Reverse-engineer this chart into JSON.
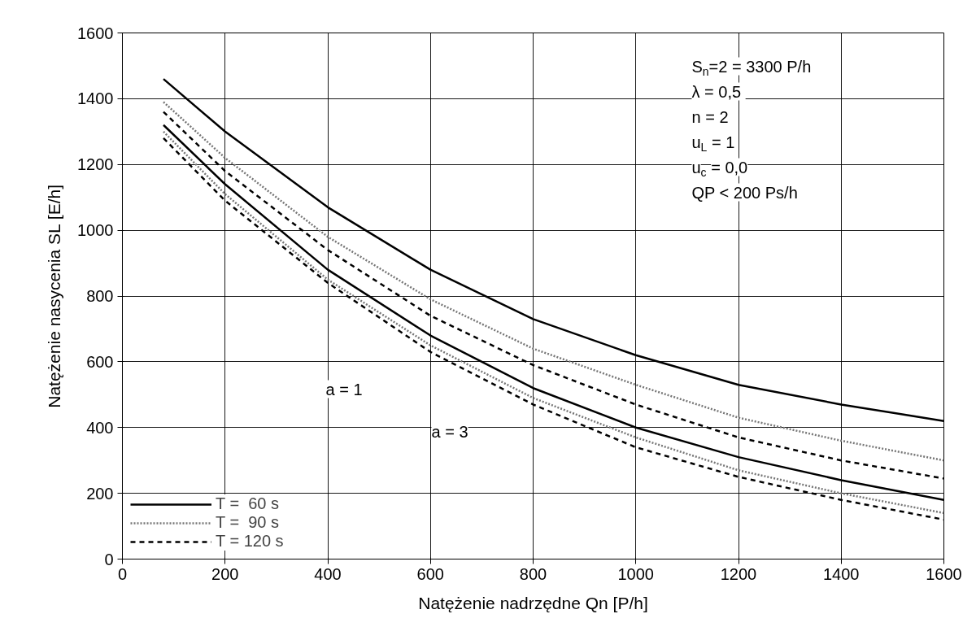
{
  "chart_data": {
    "type": "line",
    "xlabel": "Natężenie nadrzędne Qn [P/h]",
    "ylabel": "Natężenie nasycenia SL [E/h]",
    "x": [
      80,
      200,
      400,
      600,
      800,
      1000,
      1200,
      1400,
      1600
    ],
    "series": [
      {
        "name": "T =  60 s",
        "color": "#000000",
        "line_style": "solid",
        "values": [
          1460,
          1300,
          1070,
          880,
          730,
          620,
          530,
          470,
          420
        ]
      },
      {
        "name": "T =  90 s",
        "color": "#777777",
        "line_style": "dotted",
        "values": [
          1390,
          1220,
          980,
          790,
          640,
          530,
          430,
          360,
          300
        ]
      },
      {
        "name": "T = 120 s",
        "color": "#000000",
        "line_style": "dashed",
        "values": [
          1360,
          1180,
          940,
          740,
          590,
          470,
          370,
          300,
          245
        ]
      },
      {
        "color": "#000000",
        "line_style": "solid",
        "values": [
          1320,
          1140,
          880,
          680,
          520,
          400,
          310,
          240,
          180
        ]
      },
      {
        "color": "#777777",
        "line_style": "dotted",
        "values": [
          1300,
          1110,
          850,
          650,
          490,
          370,
          270,
          200,
          140
        ]
      },
      {
        "color": "#000000",
        "line_style": "dashed",
        "values": [
          1280,
          1090,
          840,
          630,
          470,
          340,
          250,
          180,
          120
        ]
      }
    ],
    "annotations": [
      "a = 1",
      "a = 3",
      "S$_{n}$=2 = 3300 P/h",
      "λ  = 0,5",
      "n = 2",
      "u$_{L}$ = 1",
      "u$_{c}$ = 0,0",
      "QP < 200 Ps/h"
    ],
    "xlim": [
      0,
      1600
    ],
    "ylim": [
      0,
      1600
    ],
    "xticks": [
      0,
      200,
      400,
      600,
      800,
      1000,
      1200,
      1400,
      1600
    ],
    "yticks": [
      0,
      200,
      400,
      600,
      800,
      1000,
      1200,
      1400,
      1600
    ],
    "grid": true,
    "legend": "bottom left",
    "marker": "none"
  }
}
